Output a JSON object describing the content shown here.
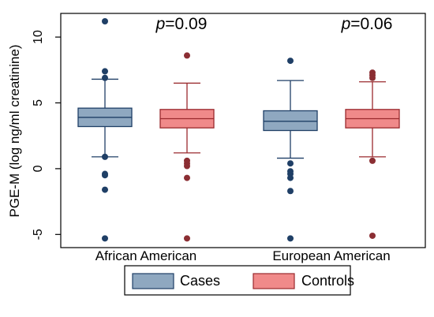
{
  "chart_data": {
    "type": "boxplot",
    "ylabel": "PGE-M (log ng/ml creatinine)",
    "ylim": [
      -6,
      11.8
    ],
    "yticks": [
      -5,
      0,
      5,
      10
    ],
    "grid": false,
    "legend_position": "bottom",
    "categories": [
      "African American",
      "European American"
    ],
    "annotations": [
      {
        "category": "African American",
        "prefix": "p",
        "text": "=0.09"
      },
      {
        "category": "European American",
        "prefix": "p",
        "text": "=0.06"
      }
    ],
    "series": [
      {
        "name": "Cases",
        "color": "#8fa8c0",
        "edge_color": "#1f3f66",
        "point_color": "#1f3f66",
        "boxes": [
          {
            "category": "African American",
            "whisker_low": 0.9,
            "q1": 3.2,
            "median": 3.9,
            "q3": 4.6,
            "whisker_high": 6.8,
            "outliers": [
              11.2,
              7.4,
              6.9,
              0.9,
              -0.4,
              -0.5,
              -1.6,
              -5.3
            ]
          },
          {
            "category": "European American",
            "whisker_low": 0.8,
            "q1": 2.9,
            "median": 3.6,
            "q3": 4.4,
            "whisker_high": 6.7,
            "outliers": [
              8.2,
              0.4,
              -0.2,
              -0.4,
              -0.7,
              -1.7,
              -5.3
            ]
          }
        ]
      },
      {
        "name": "Controls",
        "color": "#f08a8a",
        "edge_color": "#9a2a2e",
        "point_color": "#8b2e33",
        "boxes": [
          {
            "category": "African American",
            "whisker_low": 1.2,
            "q1": 3.1,
            "median": 3.8,
            "q3": 4.5,
            "whisker_high": 6.5,
            "outliers": [
              8.6,
              0.6,
              0.4,
              0.2,
              -0.7,
              -5.3
            ]
          },
          {
            "category": "European American",
            "whisker_low": 0.9,
            "q1": 3.1,
            "median": 3.8,
            "q3": 4.5,
            "whisker_high": 6.6,
            "outliers": [
              7.3,
              7.1,
              6.9,
              0.6,
              -5.1
            ]
          }
        ]
      }
    ]
  }
}
